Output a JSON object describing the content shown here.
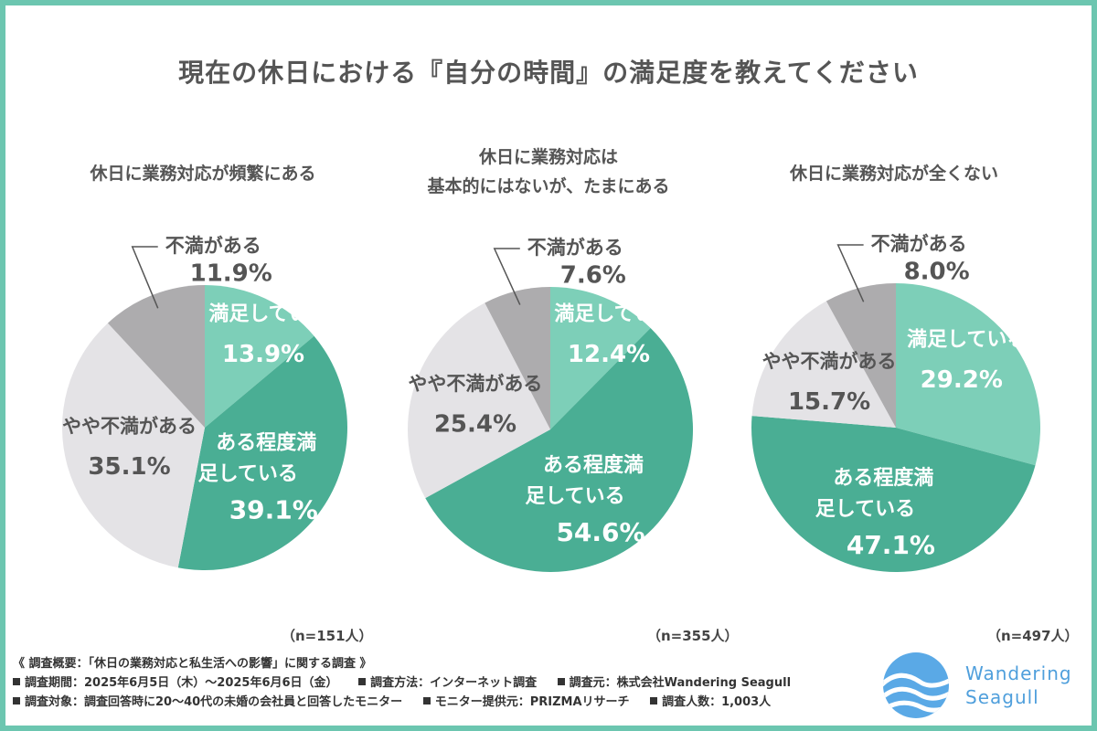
{
  "title": "現在の休日における『自分の時間』の満足度を教えてください",
  "chart_data": [
    {
      "type": "pie",
      "title": "休日に業務対応が頻繁にある",
      "n": "（n=151人）",
      "slices": [
        {
          "label": "満足している",
          "value": 13.9,
          "display": "13.9%",
          "color": "#7dcfb8"
        },
        {
          "label": "ある程度満足している",
          "value": 39.1,
          "display": "39.1%",
          "color": "#4aae94"
        },
        {
          "label": "やや不満がある",
          "value": 35.1,
          "display": "35.1%",
          "color": "#e4e3e6"
        },
        {
          "label": "不満がある",
          "value": 11.9,
          "display": "11.9%",
          "color": "#adacae"
        }
      ]
    },
    {
      "type": "pie",
      "title": "休日に業務対応は基本的にはないが、たまにある",
      "title_lines": [
        "休日に業務対応は",
        "基本的にはないが、たまにある"
      ],
      "n": "（n=355人）",
      "slices": [
        {
          "label": "満足している",
          "value": 12.4,
          "display": "12.4%",
          "color": "#7dcfb8"
        },
        {
          "label": "ある程度満足している",
          "value": 54.6,
          "display": "54.6%",
          "color": "#4aae94"
        },
        {
          "label": "やや不満がある",
          "value": 25.4,
          "display": "25.4%",
          "color": "#e4e3e6"
        },
        {
          "label": "不満がある",
          "value": 7.6,
          "display": "7.6%",
          "color": "#adacae"
        }
      ]
    },
    {
      "type": "pie",
      "title": "休日に業務対応が全くない",
      "n": "（n=497人）",
      "slices": [
        {
          "label": "満足している",
          "value": 29.2,
          "display": "29.2%",
          "color": "#7dcfb8"
        },
        {
          "label": "ある程度満足している",
          "value": 47.1,
          "display": "47.1%",
          "color": "#4aae94"
        },
        {
          "label": "やや不満がある",
          "value": 15.7,
          "display": "15.7%",
          "color": "#e4e3e6"
        },
        {
          "label": "不満がある",
          "value": 8.0,
          "display": "8.0%",
          "color": "#adacae"
        }
      ]
    }
  ],
  "footer": {
    "line1": "《 調査概要：「休日の業務対応と私生活への影響」に関する調査 》",
    "line2": [
      "調査期間：2025年6月5日（木）〜2025年6月6日（金）",
      "調査方法：インターネット調査",
      "調査元：株式会社Wandering Seagull"
    ],
    "line3": [
      "調査対象：調査回答時に20〜40代の未婚の会社員と回答したモニター",
      "モニター提供元：PRIZMAリサーチ",
      "調査人数：1,003人"
    ]
  },
  "logo": {
    "line1": "Wandering",
    "line2": "Seagull",
    "color": "#4f9fdc"
  }
}
